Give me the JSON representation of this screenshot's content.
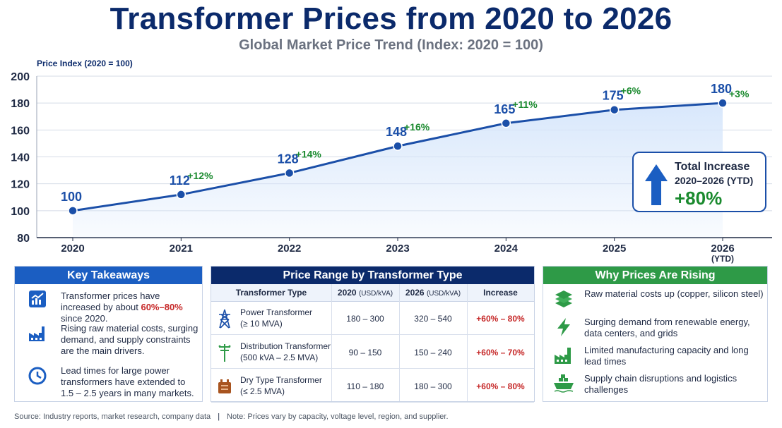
{
  "header": {
    "title": "Transformer Prices from 2020 to 2026",
    "subtitle": "Global Market Price Trend (Index: 2020 = 100)"
  },
  "chart_data": {
    "type": "area",
    "ylabel": "Price Index (2020 = 100)",
    "ylim": [
      80,
      200
    ],
    "yticks": [
      80,
      100,
      120,
      140,
      160,
      180,
      200
    ],
    "grid": "horizontal",
    "x": [
      "2020",
      "2021",
      "2022",
      "2023",
      "2024",
      "2025",
      "2026"
    ],
    "x_sublabels": [
      "",
      "",
      "",
      "",
      "",
      "",
      "(YTD)"
    ],
    "values": [
      100,
      112,
      128,
      148,
      165,
      175,
      180
    ],
    "changes": [
      "",
      "+12%",
      "+14%",
      "+16%",
      "+11%",
      "+6%",
      "+3%"
    ],
    "colors": {
      "line": "#1b4fa8",
      "value_label": "#1b4fa8",
      "change_label": "#1a8a2e",
      "area": "#d6e6fb"
    }
  },
  "total_box": {
    "label": "Total Increase",
    "period": "2020–2026 (YTD)",
    "value": "+80%",
    "icon": "up-arrow-icon"
  },
  "key_takeaways": {
    "title": "Key Takeaways",
    "items": [
      {
        "icon": "rising-chart-icon",
        "pre": "Transformer prices have increased by about ",
        "highlight": "60%–80%",
        "post": " since 2020."
      },
      {
        "icon": "factory-icon",
        "text": "Rising raw material costs, surging demand, and supply constraints are the main drivers."
      },
      {
        "icon": "clock-icon",
        "text": "Lead times for large power transformers have extended to 1.5 – 2.5 years in many markets."
      }
    ]
  },
  "price_range": {
    "title": "Price Range by Transformer Type",
    "headers": {
      "type": "Transformer Type",
      "y2020": "2020",
      "y2020_unit": "(USD/kVA)",
      "y2026": "2026",
      "y2026_unit": "(USD/kVA)",
      "increase": "Increase"
    },
    "rows": [
      {
        "icon": "transmission-tower-icon",
        "name": "Power Transformer",
        "spec": "(≥ 10 MVA)",
        "y2020": "180 – 300",
        "y2026": "320 – 540",
        "increase": "+60% – 80%"
      },
      {
        "icon": "utility-pole-icon",
        "name": "Distribution Transformer",
        "spec": "(500 kVA – 2.5 MVA)",
        "y2020": "90 – 150",
        "y2026": "150 – 240",
        "increase": "+60% – 70%"
      },
      {
        "icon": "dry-transformer-icon",
        "name": "Dry Type Transformer",
        "spec": "(≤ 2.5 MVA)",
        "y2020": "110 – 180",
        "y2026": "180 – 300",
        "increase": "+60% – 80%"
      }
    ]
  },
  "why_rising": {
    "title": "Why Prices Are Rising",
    "items": [
      {
        "icon": "materials-stack-icon",
        "text": "Raw material costs up (copper, silicon steel)"
      },
      {
        "icon": "lightning-icon",
        "text": "Surging demand from renewable energy, data centers, and grids"
      },
      {
        "icon": "factory-icon",
        "text": "Limited manufacturing capacity and long lead times"
      },
      {
        "icon": "cargo-ship-icon",
        "text": "Supply chain disruptions and logistics challenges"
      }
    ]
  },
  "footer": {
    "source": "Source: Industry reports, market research, company data",
    "separator": "|",
    "note": "Note: Prices vary by capacity, voltage level, region, and supplier."
  }
}
